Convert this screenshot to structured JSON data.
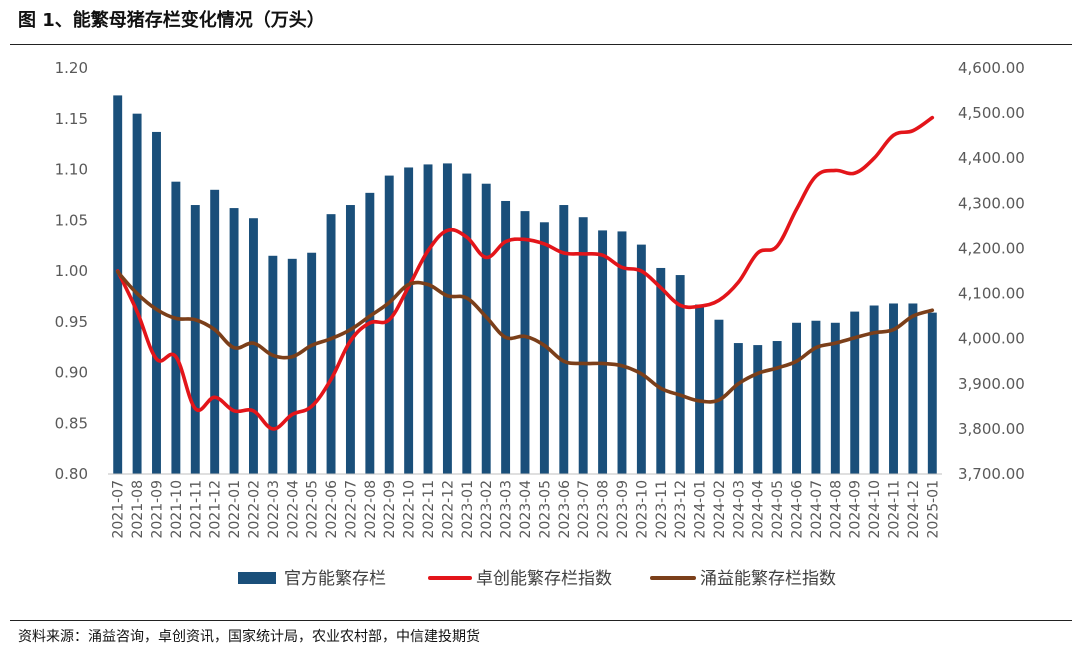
{
  "figure": {
    "title": "图 1、能繁母猪存栏变化情况（万头）",
    "source": "资料来源：涌益咨询，卓创资讯，国家统计局，农业农村部，中信建投期货"
  },
  "colors": {
    "bar": "#1a4f7a",
    "zhuochuang": "#e3151a",
    "yongyi": "#7b3f1a",
    "axis": "#bfbfbf",
    "tick_text": "#595959"
  },
  "chart_data": {
    "type": "bar",
    "categories": [
      "2021-07",
      "2021-08",
      "2021-09",
      "2021-10",
      "2021-11",
      "2021-12",
      "2022-01",
      "2022-02",
      "2022-03",
      "2022-04",
      "2022-05",
      "2022-06",
      "2022-07",
      "2022-08",
      "2022-09",
      "2022-10",
      "2022-11",
      "2022-12",
      "2023-01",
      "2023-02",
      "2023-03",
      "2023-04",
      "2023-05",
      "2023-06",
      "2023-07",
      "2023-08",
      "2023-09",
      "2023-10",
      "2023-11",
      "2023-12",
      "2024-01",
      "2024-02",
      "2024-03",
      "2024-04",
      "2024-05",
      "2024-06",
      "2024-07",
      "2024-08",
      "2024-09",
      "2024-10",
      "2024-11",
      "2024-12",
      "2025-01"
    ],
    "y_left": {
      "lim": [
        0.8,
        1.2
      ],
      "ticks": [
        "0.80",
        "0.85",
        "0.90",
        "0.95",
        "1.00",
        "1.05",
        "1.10",
        "1.15",
        "1.20"
      ]
    },
    "y_right": {
      "lim": [
        3700,
        4600
      ],
      "ticks": [
        "3,700.00",
        "3,800.00",
        "3,900.00",
        "4,000.00",
        "4,100.00",
        "4,200.00",
        "4,300.00",
        "4,400.00",
        "4,500.00",
        "4,600.00"
      ]
    },
    "legend_position": "bottom",
    "grid": false,
    "series": [
      {
        "name": "官方能繁存栏",
        "type": "bar",
        "axis": "left",
        "values": [
          1.173,
          1.155,
          1.137,
          1.088,
          1.065,
          1.08,
          1.062,
          1.052,
          1.015,
          1.012,
          1.018,
          1.056,
          1.065,
          1.077,
          1.094,
          1.102,
          1.105,
          1.106,
          1.096,
          1.086,
          1.069,
          1.059,
          1.048,
          1.065,
          1.053,
          1.04,
          1.039,
          1.026,
          1.003,
          0.996,
          0.967,
          0.952,
          0.929,
          0.927,
          0.931,
          0.949,
          0.951,
          0.949,
          0.96,
          0.966,
          0.968,
          0.968,
          0.959
        ]
      },
      {
        "name": "卓创能繁存栏指数",
        "type": "line",
        "axis": "right",
        "values": [
          4150,
          4060,
          3955,
          3960,
          3845,
          3870,
          3840,
          3840,
          3800,
          3832,
          3850,
          3910,
          3995,
          4035,
          4042,
          4115,
          4195,
          4240,
          4225,
          4180,
          4215,
          4220,
          4210,
          4190,
          4188,
          4185,
          4158,
          4150,
          4113,
          4074,
          4072,
          4085,
          4125,
          4190,
          4205,
          4287,
          4360,
          4373,
          4367,
          4400,
          4451,
          4461,
          4490
        ]
      },
      {
        "name": "涌益能繁存栏指数",
        "type": "line",
        "axis": "right",
        "values": [
          4148,
          4100,
          4065,
          4045,
          4042,
          4020,
          3980,
          3990,
          3963,
          3960,
          3985,
          4000,
          4020,
          4050,
          4080,
          4120,
          4120,
          4095,
          4090,
          4048,
          4003,
          4005,
          3985,
          3950,
          3945,
          3945,
          3940,
          3922,
          3890,
          3875,
          3862,
          3864,
          3900,
          3923,
          3935,
          3950,
          3980,
          3990,
          4002,
          4013,
          4020,
          4050,
          4063
        ]
      }
    ]
  }
}
